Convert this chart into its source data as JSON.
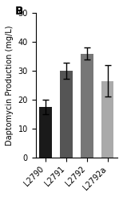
{
  "categories": [
    "L2790",
    "L2791",
    "L2792",
    "L2792a"
  ],
  "values": [
    17.5,
    30.0,
    36.0,
    26.5
  ],
  "errors": [
    2.5,
    2.8,
    2.0,
    5.5
  ],
  "bar_colors": [
    "#1a1a1a",
    "#555555",
    "#777777",
    "#aaaaaa"
  ],
  "ylabel": "Daptomycin Production (mg/L)",
  "ylim": [
    0,
    50
  ],
  "yticks": [
    0,
    10,
    20,
    30,
    40,
    50
  ],
  "panel_label": "B",
  "bar_width": 0.6,
  "figsize": [
    1.54,
    2.45
  ],
  "dpi": 100
}
